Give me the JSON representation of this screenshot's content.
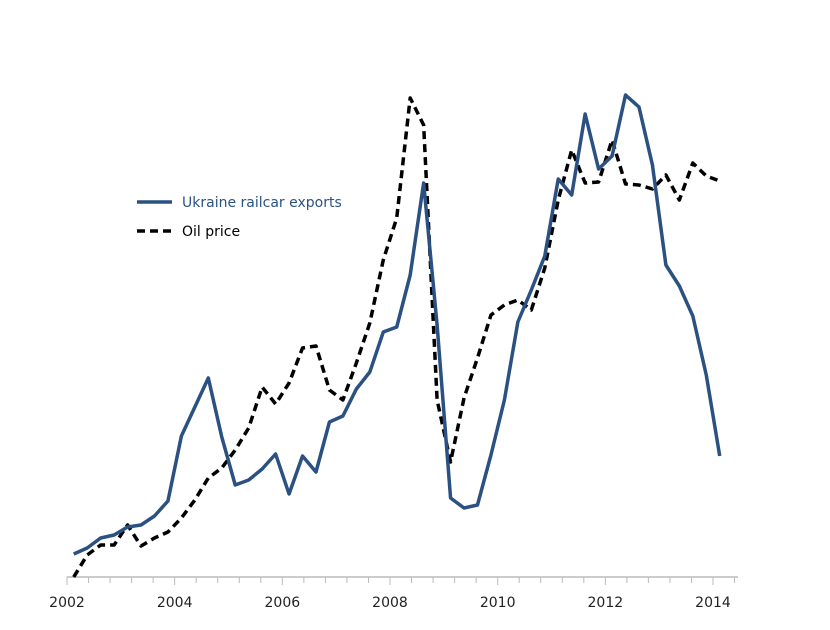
{
  "chart_data": {
    "type": "line",
    "title": "",
    "xlabel": "",
    "ylabel": "",
    "xlim": [
      2002,
      2014.4
    ],
    "ylim": [
      0,
      100
    ],
    "y_units": "index (unlabeled axis, relative scale)",
    "grid": false,
    "legend_position": "upper-left",
    "x_ticks": [
      "2002",
      "2004",
      "2006",
      "2008",
      "2010",
      "2012",
      "2014"
    ],
    "x": [
      2002.125,
      2002.375,
      2002.625,
      2002.875,
      2003.125,
      2003.375,
      2003.625,
      2003.875,
      2004.125,
      2004.375,
      2004.625,
      2004.875,
      2005.125,
      2005.375,
      2005.625,
      2005.875,
      2006.125,
      2006.375,
      2006.625,
      2006.875,
      2007.125,
      2007.375,
      2007.625,
      2007.875,
      2008.125,
      2008.375,
      2008.625,
      2008.875,
      2009.125,
      2009.375,
      2009.625,
      2009.875,
      2010.125,
      2010.375,
      2010.625,
      2010.875,
      2011.125,
      2011.375,
      2011.625,
      2011.875,
      2012.125,
      2012.375,
      2012.625,
      2012.875,
      2013.125,
      2013.375,
      2013.625,
      2013.875,
      2014.125
    ],
    "series": [
      {
        "name": "Ukraine railcar exports",
        "color": "#2b5183",
        "style": "solid",
        "values": [
          4.6,
          5.8,
          7.8,
          8.4,
          10,
          10.4,
          12.2,
          15.2,
          28.2,
          34,
          39.8,
          28,
          18.4,
          19.4,
          21.6,
          24.6,
          16.6,
          24.2,
          21,
          31,
          32.2,
          37.6,
          41,
          49,
          50,
          60.4,
          78.8,
          50.4,
          15.8,
          13.8,
          14.4,
          24.4,
          35.4,
          51,
          57.4,
          64.2,
          79.6,
          76.4,
          92.6,
          81.6,
          84.2,
          96.4,
          94,
          82.4,
          62.4,
          58.2,
          52.2,
          40.4,
          24.2
        ]
      },
      {
        "name": "Oil price",
        "color": "#000000",
        "style": "dashed",
        "values": [
          0,
          4.4,
          6.4,
          6.4,
          10.4,
          6.2,
          7.8,
          9,
          11.8,
          15.4,
          19.8,
          21.8,
          25.4,
          29.8,
          38,
          34.6,
          38.8,
          45.8,
          46.2,
          37.4,
          35.4,
          42.8,
          50.8,
          63.4,
          71.8,
          95.8,
          90.4,
          35.4,
          23,
          35.8,
          43.8,
          52.4,
          54.4,
          55.4,
          53.4,
          61.8,
          75.4,
          85.4,
          78.8,
          79,
          87.4,
          78.6,
          78.4,
          77.6,
          80.4,
          75.4,
          82.8,
          80.2,
          79.2
        ]
      }
    ]
  }
}
